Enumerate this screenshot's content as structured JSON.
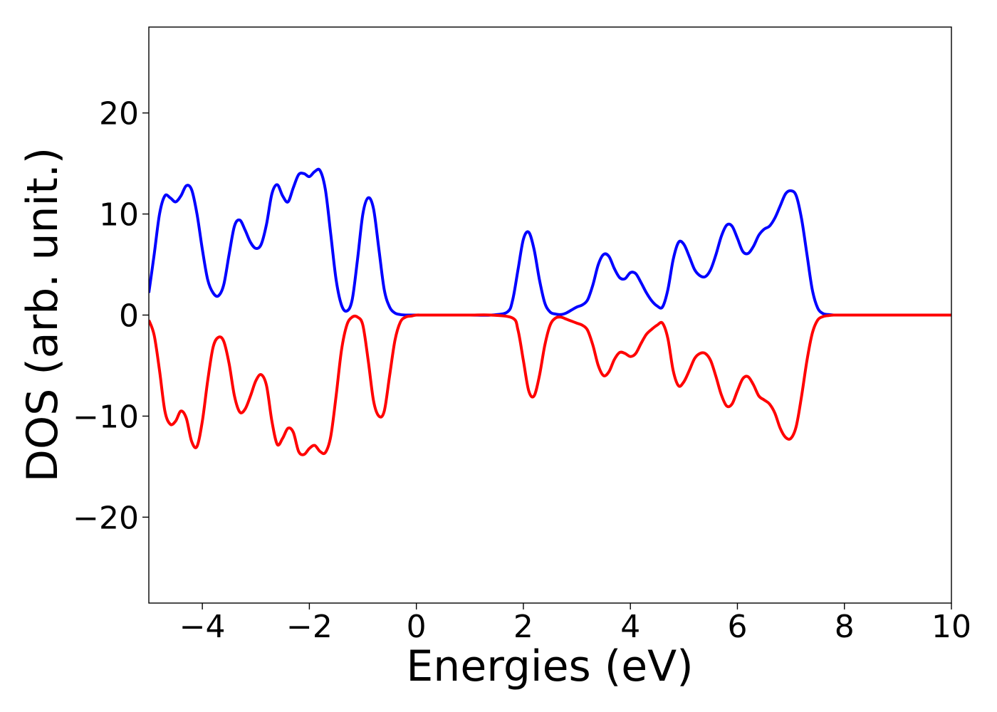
{
  "chart_data": {
    "type": "line",
    "xlabel": "Energies (eV)",
    "ylabel": "DOS (arb. unit.)",
    "xlim": [
      -5,
      10
    ],
    "ylim": [
      -28.5,
      28.5
    ],
    "xticks": [
      -4,
      -2,
      0,
      2,
      4,
      6,
      8,
      10
    ],
    "xtick_labels": [
      "−4",
      "−2",
      "0",
      "2",
      "4",
      "6",
      "8",
      "10"
    ],
    "yticks": [
      -20,
      -10,
      0,
      10,
      20
    ],
    "ytick_labels": [
      "−20",
      "−10",
      "0",
      "10",
      "20"
    ],
    "grid": false,
    "series": [
      {
        "color": "#0000ff",
        "x": [
          -5.0,
          -4.9,
          -4.8,
          -4.7,
          -4.6,
          -4.5,
          -4.4,
          -4.3,
          -4.2,
          -4.1,
          -4.0,
          -3.9,
          -3.8,
          -3.7,
          -3.6,
          -3.5,
          -3.4,
          -3.3,
          -3.2,
          -3.1,
          -3.0,
          -2.9,
          -2.8,
          -2.7,
          -2.6,
          -2.5,
          -2.4,
          -2.3,
          -2.2,
          -2.1,
          -2.0,
          -1.9,
          -1.8,
          -1.7,
          -1.6,
          -1.5,
          -1.4,
          -1.3,
          -1.2,
          -1.1,
          -1.0,
          -0.9,
          -0.8,
          -0.7,
          -0.6,
          -0.5,
          -0.4,
          -0.3,
          -0.2,
          -0.1,
          0.0,
          0.1,
          0.2,
          0.4,
          0.6,
          1.0,
          1.4,
          1.7,
          1.8,
          1.9,
          2.0,
          2.1,
          2.2,
          2.3,
          2.4,
          2.5,
          2.6,
          2.7,
          2.8,
          2.9,
          3.0,
          3.1,
          3.2,
          3.3,
          3.4,
          3.5,
          3.6,
          3.7,
          3.8,
          3.9,
          4.0,
          4.1,
          4.2,
          4.3,
          4.4,
          4.5,
          4.6,
          4.7,
          4.8,
          4.9,
          5.0,
          5.1,
          5.2,
          5.3,
          5.4,
          5.5,
          5.6,
          5.7,
          5.8,
          5.9,
          6.0,
          6.1,
          6.2,
          6.3,
          6.4,
          6.5,
          6.6,
          6.7,
          6.8,
          6.9,
          7.0,
          7.1,
          7.2,
          7.3,
          7.4,
          7.5,
          7.6,
          7.7,
          7.8,
          7.9,
          8.0,
          8.1,
          8.2,
          8.3,
          8.4,
          8.5,
          8.6,
          8.7,
          8.8,
          9.0,
          9.5,
          10.0
        ],
        "y": [
          2.2,
          6.0,
          10.0,
          11.8,
          11.6,
          11.2,
          11.8,
          12.8,
          12.4,
          10.0,
          6.5,
          3.5,
          2.2,
          1.9,
          3.0,
          6.0,
          8.8,
          9.4,
          8.4,
          7.2,
          6.6,
          7.0,
          9.0,
          12.0,
          12.9,
          11.8,
          11.2,
          12.6,
          13.9,
          14.0,
          13.7,
          14.2,
          14.3,
          12.4,
          8.0,
          3.5,
          1.0,
          0.4,
          1.5,
          5.5,
          10.0,
          11.6,
          10.5,
          6.5,
          2.5,
          0.8,
          0.2,
          0.05,
          0.0,
          0.0,
          0.0,
          0.0,
          0.0,
          0.0,
          0.0,
          0.0,
          0.0,
          0.3,
          1.5,
          4.5,
          7.5,
          8.2,
          6.5,
          3.5,
          1.2,
          0.3,
          0.1,
          0.05,
          0.2,
          0.5,
          0.8,
          1.0,
          1.5,
          3.0,
          5.0,
          6.0,
          5.8,
          4.6,
          3.7,
          3.6,
          4.2,
          4.1,
          3.2,
          2.2,
          1.4,
          0.9,
          0.8,
          2.5,
          5.5,
          7.2,
          7.0,
          5.8,
          4.5,
          3.9,
          3.8,
          4.5,
          6.0,
          7.8,
          8.9,
          8.8,
          7.6,
          6.3,
          6.1,
          6.8,
          7.9,
          8.5,
          8.8,
          9.6,
          10.8,
          12.0,
          12.3,
          11.8,
          9.5,
          6.0,
          2.5,
          0.7,
          0.15,
          0.05,
          0.0,
          0.0,
          0.0,
          0.0,
          0.0,
          0.0,
          0.0,
          0.0,
          0.0,
          0.0,
          0.0,
          0.0,
          0.0,
          0.0
        ]
      },
      {
        "color": "#ff0000",
        "x": [
          -5.0,
          -4.9,
          -4.8,
          -4.7,
          -4.6,
          -4.5,
          -4.4,
          -4.3,
          -4.2,
          -4.1,
          -4.0,
          -3.9,
          -3.8,
          -3.7,
          -3.6,
          -3.5,
          -3.4,
          -3.3,
          -3.2,
          -3.1,
          -3.0,
          -2.9,
          -2.8,
          -2.7,
          -2.6,
          -2.5,
          -2.4,
          -2.3,
          -2.2,
          -2.1,
          -2.0,
          -1.9,
          -1.8,
          -1.7,
          -1.6,
          -1.5,
          -1.4,
          -1.3,
          -1.2,
          -1.1,
          -1.0,
          -0.9,
          -0.8,
          -0.7,
          -0.6,
          -0.5,
          -0.4,
          -0.3,
          -0.2,
          -0.1,
          0.0,
          0.1,
          0.2,
          0.3,
          0.4,
          0.6,
          1.0,
          1.4,
          1.8,
          1.9,
          2.0,
          2.1,
          2.2,
          2.3,
          2.4,
          2.5,
          2.6,
          2.7,
          2.8,
          2.9,
          3.0,
          3.1,
          3.2,
          3.3,
          3.4,
          3.5,
          3.6,
          3.7,
          3.8,
          3.9,
          4.0,
          4.1,
          4.2,
          4.3,
          4.4,
          4.5,
          4.6,
          4.7,
          4.8,
          4.9,
          5.0,
          5.1,
          5.2,
          5.3,
          5.4,
          5.5,
          5.6,
          5.7,
          5.8,
          5.9,
          6.0,
          6.1,
          6.2,
          6.3,
          6.4,
          6.5,
          6.6,
          6.7,
          6.8,
          6.9,
          7.0,
          7.1,
          7.2,
          7.3,
          7.4,
          7.5,
          7.6,
          7.7,
          7.8,
          7.9,
          8.0,
          8.1,
          8.2,
          8.3,
          8.4,
          8.5,
          8.6,
          8.7,
          8.8,
          9.0,
          9.5,
          10.0
        ],
        "y": [
          -0.5,
          -2.0,
          -5.5,
          -9.5,
          -10.8,
          -10.5,
          -9.5,
          -10.2,
          -12.5,
          -13.0,
          -10.5,
          -6.5,
          -3.2,
          -2.2,
          -2.6,
          -4.8,
          -8.0,
          -9.6,
          -9.3,
          -8.0,
          -6.5,
          -5.9,
          -7.0,
          -10.5,
          -12.8,
          -12.2,
          -11.2,
          -11.6,
          -13.5,
          -13.8,
          -13.2,
          -12.9,
          -13.5,
          -13.6,
          -12.0,
          -8.0,
          -3.5,
          -1.0,
          -0.2,
          -0.2,
          -1.0,
          -4.5,
          -8.5,
          -10.0,
          -9.5,
          -6.0,
          -2.5,
          -0.7,
          -0.2,
          -0.1,
          0.0,
          0.0,
          0.0,
          0.0,
          0.0,
          0.0,
          0.0,
          0.0,
          -0.3,
          -1.5,
          -4.5,
          -7.5,
          -8.0,
          -6.0,
          -3.0,
          -1.0,
          -0.3,
          -0.2,
          -0.4,
          -0.6,
          -0.8,
          -1.0,
          -1.5,
          -3.0,
          -5.0,
          -6.0,
          -5.6,
          -4.4,
          -3.7,
          -3.8,
          -4.1,
          -3.8,
          -2.8,
          -1.9,
          -1.4,
          -1.0,
          -0.8,
          -2.3,
          -5.5,
          -7.0,
          -6.6,
          -5.5,
          -4.3,
          -3.8,
          -3.8,
          -4.5,
          -6.1,
          -7.9,
          -9.0,
          -8.8,
          -7.5,
          -6.3,
          -6.1,
          -6.9,
          -8.0,
          -8.4,
          -8.8,
          -9.7,
          -11.2,
          -12.1,
          -12.2,
          -11.0,
          -8.0,
          -4.5,
          -1.8,
          -0.5,
          -0.15,
          -0.05,
          0.0,
          0.0,
          0.0,
          0.0,
          0.0,
          0.0,
          0.0,
          0.0,
          0.0,
          0.0,
          0.0,
          0.0,
          0.0,
          0.0
        ]
      }
    ]
  }
}
